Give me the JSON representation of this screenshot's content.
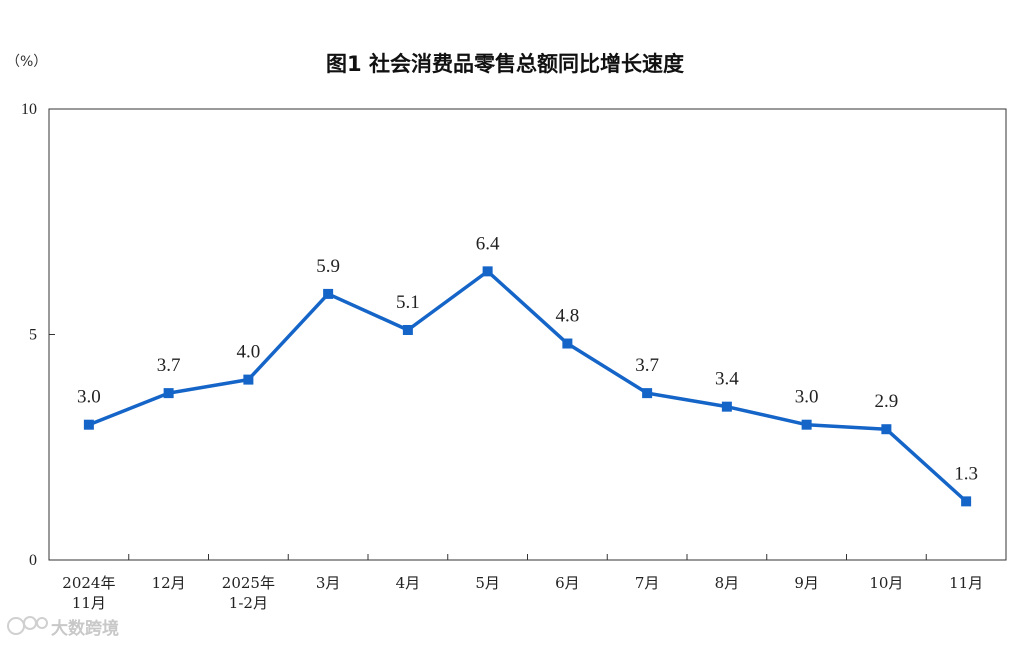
{
  "chart_data": {
    "type": "line",
    "title": "图1  社会消费品零售总额同比增长速度",
    "unit": "（%）",
    "categories": [
      [
        "2024年",
        "11月"
      ],
      [
        "12月"
      ],
      [
        "2025年",
        "1-2月"
      ],
      [
        "3月"
      ],
      [
        "4月"
      ],
      [
        "5月"
      ],
      [
        "6月"
      ],
      [
        "7月"
      ],
      [
        "8月"
      ],
      [
        "9月"
      ],
      [
        "10月"
      ],
      [
        "11月"
      ]
    ],
    "series": [
      {
        "values": [
          3.0,
          3.7,
          4.0,
          5.9,
          5.1,
          6.4,
          4.8,
          3.7,
          3.4,
          3.0,
          2.9,
          1.3
        ],
        "labels": [
          "3.0",
          "3.7",
          "4.0",
          "5.9",
          "5.1",
          "6.4",
          "4.8",
          "3.7",
          "3.4",
          "3.0",
          "2.9",
          "1.3"
        ],
        "color": "#1565c8"
      }
    ],
    "ylim": [
      0,
      10
    ],
    "yticks": [
      0,
      5,
      10
    ],
    "grid": false
  },
  "watermark": "大数跨境"
}
